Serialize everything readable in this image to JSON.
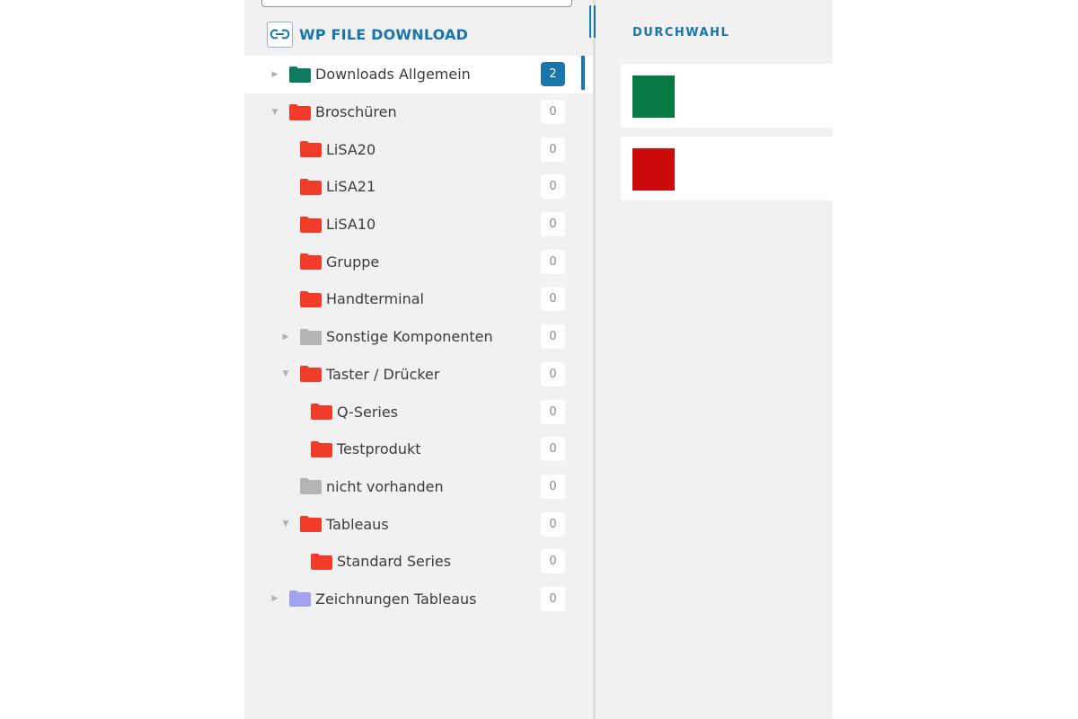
{
  "brand": {
    "title": "WP FILE DOWNLOAD",
    "logo_icon": "wpfd-logo-icon"
  },
  "search": {
    "placeholder": "",
    "value": ""
  },
  "categories": [
    {
      "label": "Downloads Allgemein",
      "count": "2",
      "toggle": "▶",
      "color": "#0f7a5f",
      "active": true
    },
    {
      "label": "Broschüren",
      "count": "0",
      "toggle": "▼",
      "color": "#f23c2a"
    },
    {
      "label": "LiSA20",
      "count": "0",
      "toggle": "",
      "color": "#f23c2a"
    },
    {
      "label": "LiSA21",
      "count": "0",
      "toggle": "",
      "color": "#f23c2a"
    },
    {
      "label": "LiSA10",
      "count": "0",
      "toggle": "",
      "color": "#f23c2a"
    },
    {
      "label": "Gruppe",
      "count": "0",
      "toggle": "",
      "color": "#f23c2a"
    },
    {
      "label": "Handterminal",
      "count": "0",
      "toggle": "",
      "color": "#f23c2a"
    },
    {
      "label": "Sonstige Komponenten",
      "count": "0",
      "toggle": "▶",
      "color": "#b4b4b4"
    },
    {
      "label": "Taster / Drücker",
      "count": "0",
      "toggle": "▼",
      "color": "#f23c2a"
    },
    {
      "label": "Q-Series",
      "count": "0",
      "toggle": "",
      "color": "#f23c2a"
    },
    {
      "label": "Testprodukt",
      "count": "0",
      "toggle": "",
      "color": "#f23c2a"
    },
    {
      "label": "nicht vorhanden",
      "count": "0",
      "toggle": "",
      "color": "#b4b4b4"
    },
    {
      "label": "Tableaus",
      "count": "0",
      "toggle": "▼",
      "color": "#f23c2a"
    },
    {
      "label": "Standard Series",
      "count": "0",
      "toggle": "",
      "color": "#f23c2a"
    },
    {
      "label": "Zeichnungen Tableaus",
      "count": "0",
      "toggle": "▶",
      "color": "#a3a0ef"
    }
  ],
  "main": {
    "title": "DURCHWAHL",
    "files": [
      {
        "color": "#077a44"
      },
      {
        "color": "#cc0a0a"
      }
    ]
  },
  "colors": {
    "accent": "#1a75a8",
    "panel": "#f1f1f1"
  }
}
